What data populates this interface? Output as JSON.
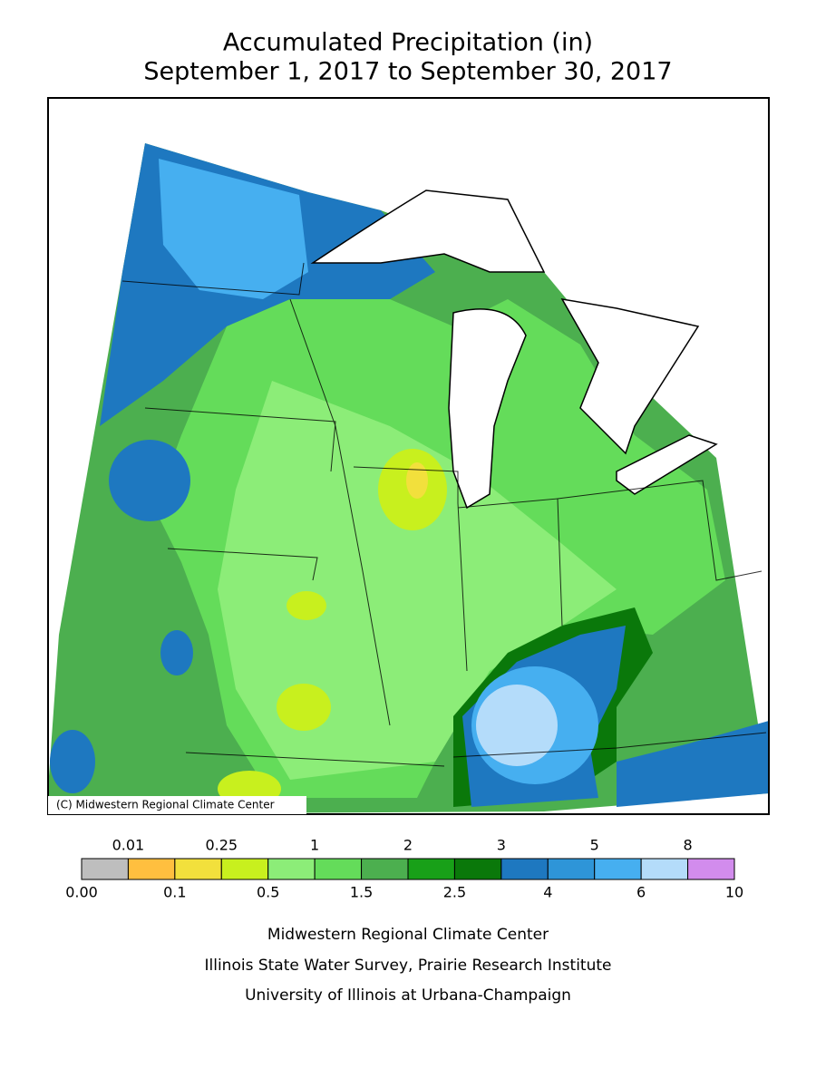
{
  "title": "Accumulated Precipitation (in)",
  "subtitle": "September 1, 2017 to September 30, 2017",
  "copyright": "(C) Midwestern Regional Climate Center",
  "legend": {
    "boundaries": [
      {
        "value": 0,
        "label": "0.00"
      },
      0.01,
      0.1,
      0.25,
      0.5,
      1,
      1.5,
      2,
      2.5,
      3,
      4,
      5,
      6,
      8,
      10
    ],
    "colors": [
      "#bebebe",
      "#ffbf3f",
      "#f2e03c",
      "#c8f01e",
      "#8ced78",
      "#64dc5a",
      "#4caf4f",
      "#18a018",
      "#0a780a",
      "#1e78c0",
      "#2e95d8",
      "#46aff0",
      "#b4dcfa",
      "#d28ced"
    ]
  },
  "footer": [
    "Midwestern Regional Climate Center",
    "Illinois State Water Survey, Prairie Research Institute",
    "University of Illinois at Urbana-Champaign"
  ]
}
